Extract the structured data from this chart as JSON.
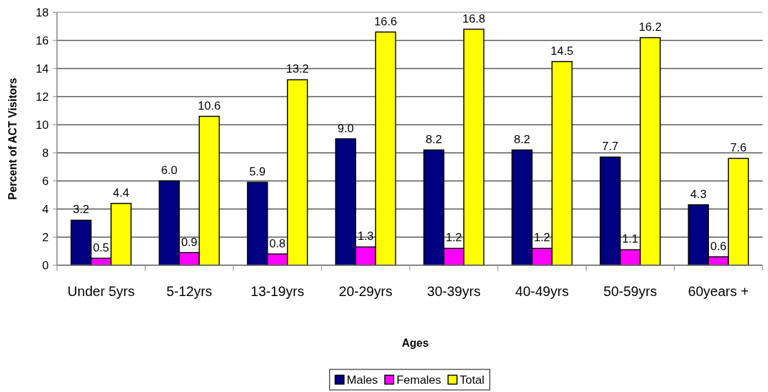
{
  "chart_data": {
    "type": "bar",
    "xlabel": "Ages",
    "ylabel": "Percent of ACT Visitors",
    "categories": [
      "Under 5yrs",
      "5-12yrs",
      "13-19yrs",
      "20-29yrs",
      "30-39yrs",
      "40-49yrs",
      "50-59yrs",
      "60years +"
    ],
    "series": [
      {
        "name": "Males",
        "color": "#000080",
        "values": [
          3.2,
          6.0,
          5.9,
          9.0,
          8.2,
          8.2,
          7.7,
          4.3
        ],
        "value_labels": [
          "3.2",
          "6.0",
          "5.9",
          "9.0",
          "8.2",
          "8.2",
          "7.7",
          "4.3"
        ]
      },
      {
        "name": "Females",
        "color": "#ff00ff",
        "values": [
          0.5,
          0.9,
          0.8,
          1.3,
          1.2,
          1.2,
          1.1,
          0.6
        ],
        "value_labels": [
          "0.5",
          "0.9",
          "0.8",
          "1.3",
          "1.2",
          "1.2",
          "1.1",
          "0.6"
        ]
      },
      {
        "name": "Total",
        "color": "#ffff00",
        "values": [
          4.4,
          10.6,
          13.2,
          16.6,
          16.8,
          14.5,
          16.2,
          7.6
        ],
        "value_labels": [
          "4.4",
          "10.6",
          "13.2",
          "16.6",
          "16.8",
          "14.5",
          "16.2",
          "7.6"
        ]
      }
    ],
    "ylim": [
      0,
      18
    ],
    "yticks": [
      0,
      2,
      4,
      6,
      8,
      10,
      12,
      14,
      16,
      18
    ],
    "grid": "y",
    "legend": "bottom"
  }
}
